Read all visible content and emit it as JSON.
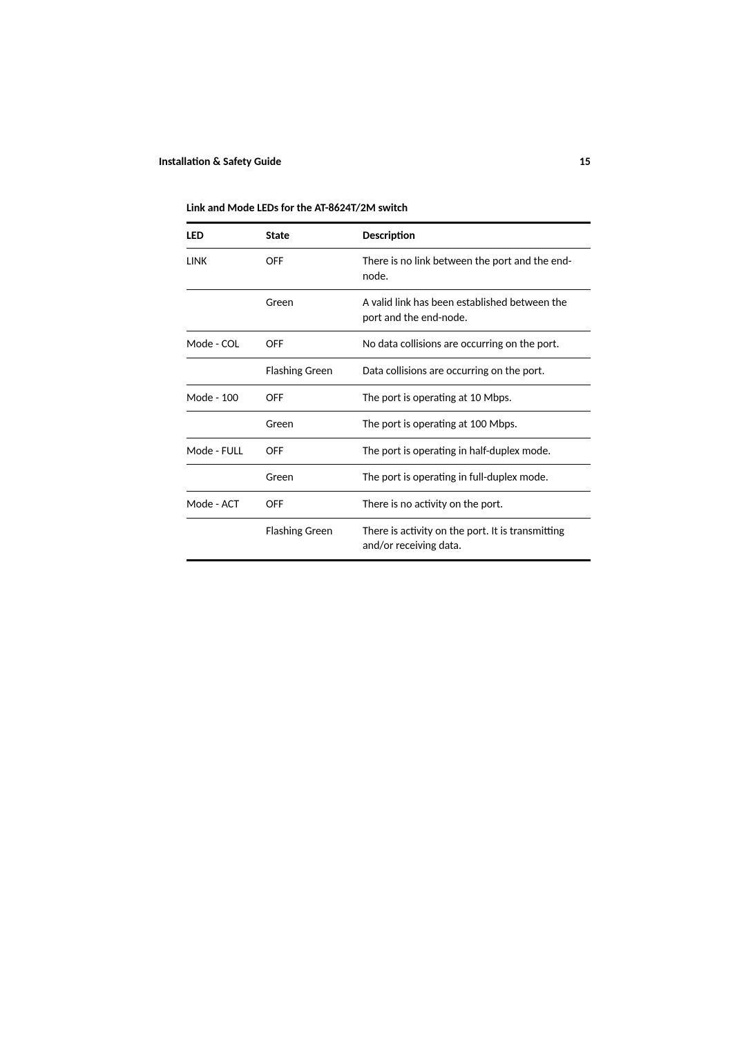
{
  "header": {
    "title": "Installation & Safety Guide",
    "page_number": "15"
  },
  "table": {
    "caption": "Link and Mode LEDs for the AT-8624T/2M switch",
    "columns": [
      "LED",
      "State",
      "Description"
    ],
    "rows": [
      {
        "led": "LINK",
        "state": "OFF",
        "desc": "There is no link between the port and the end-node.",
        "sep": true
      },
      {
        "led": "",
        "state": "Green",
        "desc": "A valid link has been established between the port and the end-node.",
        "sep": true
      },
      {
        "led": "Mode - COL",
        "state": "OFF",
        "desc": "No data collisions are occurring on the port.",
        "sep": true
      },
      {
        "led": "",
        "state": "Flashing Green",
        "desc": "Data collisions are occurring on the port.",
        "sep": true
      },
      {
        "led": "Mode - 100",
        "state": "OFF",
        "desc": "The port is operating at 10 Mbps.",
        "sep": true
      },
      {
        "led": "",
        "state": "Green",
        "desc": "The port is operating at 100 Mbps.",
        "sep": true
      },
      {
        "led": "Mode - FULL",
        "state": "OFF",
        "desc": "The port is operating in half-duplex mode.",
        "sep": true
      },
      {
        "led": "",
        "state": "Green",
        "desc": "The port is operating in full-duplex mode.",
        "sep": true
      },
      {
        "led": "Mode - ACT",
        "state": "OFF",
        "desc": "There is no activity on the port.",
        "sep": true
      },
      {
        "led": "",
        "state": "Flashing Green",
        "desc": "There is activity on the port. It is transmitting and/or receiving data.",
        "sep": false
      }
    ]
  }
}
